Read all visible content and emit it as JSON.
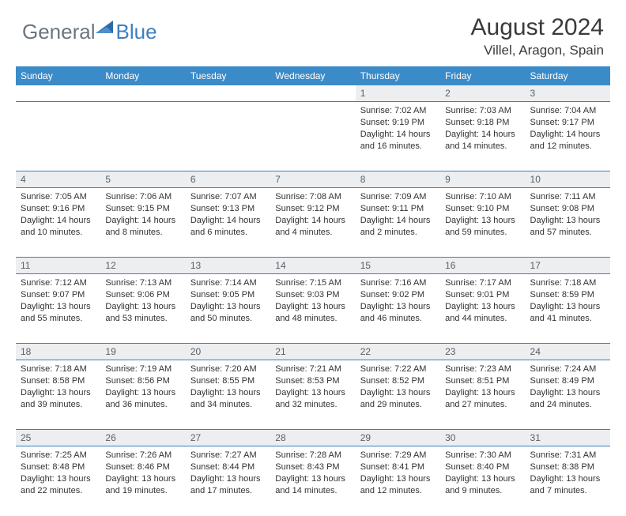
{
  "logo": {
    "general": "General",
    "blue": "Blue"
  },
  "title": "August 2024",
  "location": "Villel, Aragon, Spain",
  "weekdays": [
    "Sunday",
    "Monday",
    "Tuesday",
    "Wednesday",
    "Thursday",
    "Friday",
    "Saturday"
  ],
  "colors": {
    "header_bg": "#3b8bc9",
    "header_text": "#ffffff",
    "daynum_bg": "#eceef0",
    "daynum_text": "#5a6068",
    "rule": "#3f7fbf",
    "body_text": "#323232",
    "logo_gray": "#6b7580",
    "logo_blue": "#3f7fbf"
  },
  "grid": [
    [
      null,
      null,
      null,
      null,
      {
        "n": "1",
        "sunrise": "7:02 AM",
        "sunset": "9:19 PM",
        "daylight": "14 hours and 16 minutes."
      },
      {
        "n": "2",
        "sunrise": "7:03 AM",
        "sunset": "9:18 PM",
        "daylight": "14 hours and 14 minutes."
      },
      {
        "n": "3",
        "sunrise": "7:04 AM",
        "sunset": "9:17 PM",
        "daylight": "14 hours and 12 minutes."
      }
    ],
    [
      {
        "n": "4",
        "sunrise": "7:05 AM",
        "sunset": "9:16 PM",
        "daylight": "14 hours and 10 minutes."
      },
      {
        "n": "5",
        "sunrise": "7:06 AM",
        "sunset": "9:15 PM",
        "daylight": "14 hours and 8 minutes."
      },
      {
        "n": "6",
        "sunrise": "7:07 AM",
        "sunset": "9:13 PM",
        "daylight": "14 hours and 6 minutes."
      },
      {
        "n": "7",
        "sunrise": "7:08 AM",
        "sunset": "9:12 PM",
        "daylight": "14 hours and 4 minutes."
      },
      {
        "n": "8",
        "sunrise": "7:09 AM",
        "sunset": "9:11 PM",
        "daylight": "14 hours and 2 minutes."
      },
      {
        "n": "9",
        "sunrise": "7:10 AM",
        "sunset": "9:10 PM",
        "daylight": "13 hours and 59 minutes."
      },
      {
        "n": "10",
        "sunrise": "7:11 AM",
        "sunset": "9:08 PM",
        "daylight": "13 hours and 57 minutes."
      }
    ],
    [
      {
        "n": "11",
        "sunrise": "7:12 AM",
        "sunset": "9:07 PM",
        "daylight": "13 hours and 55 minutes."
      },
      {
        "n": "12",
        "sunrise": "7:13 AM",
        "sunset": "9:06 PM",
        "daylight": "13 hours and 53 minutes."
      },
      {
        "n": "13",
        "sunrise": "7:14 AM",
        "sunset": "9:05 PM",
        "daylight": "13 hours and 50 minutes."
      },
      {
        "n": "14",
        "sunrise": "7:15 AM",
        "sunset": "9:03 PM",
        "daylight": "13 hours and 48 minutes."
      },
      {
        "n": "15",
        "sunrise": "7:16 AM",
        "sunset": "9:02 PM",
        "daylight": "13 hours and 46 minutes."
      },
      {
        "n": "16",
        "sunrise": "7:17 AM",
        "sunset": "9:01 PM",
        "daylight": "13 hours and 44 minutes."
      },
      {
        "n": "17",
        "sunrise": "7:18 AM",
        "sunset": "8:59 PM",
        "daylight": "13 hours and 41 minutes."
      }
    ],
    [
      {
        "n": "18",
        "sunrise": "7:18 AM",
        "sunset": "8:58 PM",
        "daylight": "13 hours and 39 minutes."
      },
      {
        "n": "19",
        "sunrise": "7:19 AM",
        "sunset": "8:56 PM",
        "daylight": "13 hours and 36 minutes."
      },
      {
        "n": "20",
        "sunrise": "7:20 AM",
        "sunset": "8:55 PM",
        "daylight": "13 hours and 34 minutes."
      },
      {
        "n": "21",
        "sunrise": "7:21 AM",
        "sunset": "8:53 PM",
        "daylight": "13 hours and 32 minutes."
      },
      {
        "n": "22",
        "sunrise": "7:22 AM",
        "sunset": "8:52 PM",
        "daylight": "13 hours and 29 minutes."
      },
      {
        "n": "23",
        "sunrise": "7:23 AM",
        "sunset": "8:51 PM",
        "daylight": "13 hours and 27 minutes."
      },
      {
        "n": "24",
        "sunrise": "7:24 AM",
        "sunset": "8:49 PM",
        "daylight": "13 hours and 24 minutes."
      }
    ],
    [
      {
        "n": "25",
        "sunrise": "7:25 AM",
        "sunset": "8:48 PM",
        "daylight": "13 hours and 22 minutes."
      },
      {
        "n": "26",
        "sunrise": "7:26 AM",
        "sunset": "8:46 PM",
        "daylight": "13 hours and 19 minutes."
      },
      {
        "n": "27",
        "sunrise": "7:27 AM",
        "sunset": "8:44 PM",
        "daylight": "13 hours and 17 minutes."
      },
      {
        "n": "28",
        "sunrise": "7:28 AM",
        "sunset": "8:43 PM",
        "daylight": "13 hours and 14 minutes."
      },
      {
        "n": "29",
        "sunrise": "7:29 AM",
        "sunset": "8:41 PM",
        "daylight": "13 hours and 12 minutes."
      },
      {
        "n": "30",
        "sunrise": "7:30 AM",
        "sunset": "8:40 PM",
        "daylight": "13 hours and 9 minutes."
      },
      {
        "n": "31",
        "sunrise": "7:31 AM",
        "sunset": "8:38 PM",
        "daylight": "13 hours and 7 minutes."
      }
    ]
  ],
  "labels": {
    "sunrise": "Sunrise:",
    "sunset": "Sunset:",
    "daylight": "Daylight:"
  }
}
